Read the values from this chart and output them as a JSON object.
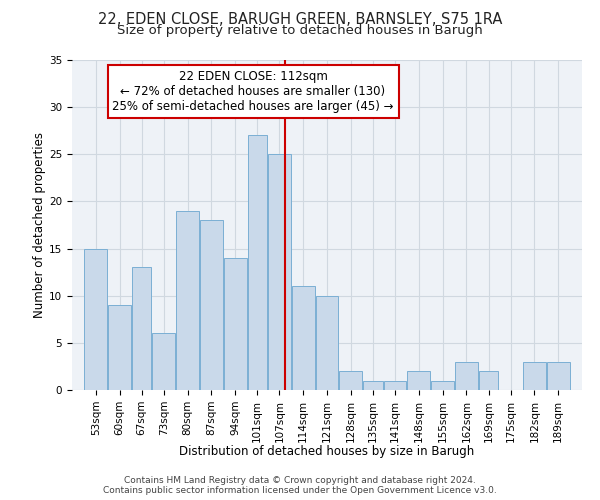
{
  "title_line1": "22, EDEN CLOSE, BARUGH GREEN, BARNSLEY, S75 1RA",
  "title_line2": "Size of property relative to detached houses in Barugh",
  "xlabel": "Distribution of detached houses by size in Barugh",
  "ylabel": "Number of detached properties",
  "bin_labels": [
    "53sqm",
    "60sqm",
    "67sqm",
    "73sqm",
    "80sqm",
    "87sqm",
    "94sqm",
    "101sqm",
    "107sqm",
    "114sqm",
    "121sqm",
    "128sqm",
    "135sqm",
    "141sqm",
    "148sqm",
    "155sqm",
    "162sqm",
    "169sqm",
    "175sqm",
    "182sqm",
    "189sqm"
  ],
  "bin_edges": [
    53,
    60,
    67,
    73,
    80,
    87,
    94,
    101,
    107,
    114,
    121,
    128,
    135,
    141,
    148,
    155,
    162,
    169,
    175,
    182,
    189,
    196
  ],
  "counts": [
    15,
    9,
    13,
    6,
    19,
    18,
    14,
    27,
    25,
    11,
    10,
    2,
    1,
    1,
    2,
    1,
    3,
    2,
    0,
    3,
    3
  ],
  "bar_facecolor": "#c9d9ea",
  "bar_edgecolor": "#7bafd4",
  "vline_x": 112,
  "vline_color": "#cc0000",
  "annotation_line1": "22 EDEN CLOSE: 112sqm",
  "annotation_line2": "← 72% of detached houses are smaller (130)",
  "annotation_line3": "25% of semi-detached houses are larger (45) →",
  "annotation_box_facecolor": "#ffffff",
  "annotation_box_edgecolor": "#cc0000",
  "ylim": [
    0,
    35
  ],
  "yticks": [
    0,
    5,
    10,
    15,
    20,
    25,
    30,
    35
  ],
  "grid_color": "#d0d8e0",
  "background_color": "#eef2f7",
  "footnote": "Contains HM Land Registry data © Crown copyright and database right 2024.\nContains public sector information licensed under the Open Government Licence v3.0.",
  "title_fontsize": 10.5,
  "subtitle_fontsize": 9.5,
  "axis_label_fontsize": 8.5,
  "tick_fontsize": 7.5,
  "annotation_fontsize": 8.5,
  "footnote_fontsize": 6.5
}
